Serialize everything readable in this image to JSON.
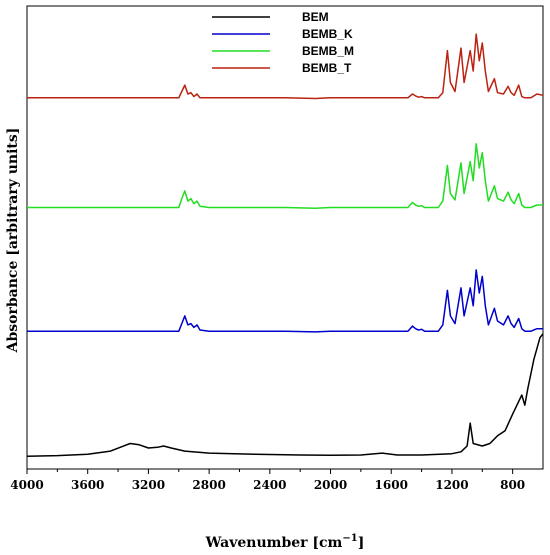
{
  "chart_data": {
    "type": "line",
    "xlabel": "Wavenumber [cm",
    "xlabel_sup": "−1",
    "xlabel_end": "]",
    "ylabel": "Absorbance [arbitrary units]",
    "xlim": [
      4000,
      600
    ],
    "x_reversed": true,
    "xticks": [
      4000,
      3600,
      3200,
      2800,
      2400,
      2000,
      1600,
      1200,
      800
    ],
    "xtick_labels": [
      "4000",
      "3600",
      "3200",
      "2800",
      "2400",
      "2000",
      "1600",
      "1200",
      "800"
    ],
    "yticks_shown": false,
    "grid": false,
    "legend_position": "top-center",
    "stacked_offset": true,
    "series": [
      {
        "name": "BEM",
        "color": "#000000",
        "baseline": 0.02,
        "points": [
          [
            4000,
            0.02
          ],
          [
            3800,
            0.025
          ],
          [
            3600,
            0.035
          ],
          [
            3450,
            0.06
          ],
          [
            3320,
            0.12
          ],
          [
            3260,
            0.11
          ],
          [
            3200,
            0.085
          ],
          [
            3140,
            0.09
          ],
          [
            3100,
            0.1
          ],
          [
            3050,
            0.085
          ],
          [
            2960,
            0.06
          ],
          [
            2800,
            0.045
          ],
          [
            2500,
            0.035
          ],
          [
            2200,
            0.03
          ],
          [
            2000,
            0.028
          ],
          [
            1800,
            0.03
          ],
          [
            1660,
            0.045
          ],
          [
            1560,
            0.03
          ],
          [
            1400,
            0.03
          ],
          [
            1200,
            0.04
          ],
          [
            1140,
            0.055
          ],
          [
            1100,
            0.1
          ],
          [
            1080,
            0.28
          ],
          [
            1060,
            0.12
          ],
          [
            1000,
            0.1
          ],
          [
            950,
            0.12
          ],
          [
            900,
            0.18
          ],
          [
            850,
            0.22
          ],
          [
            800,
            0.35
          ],
          [
            760,
            0.45
          ],
          [
            740,
            0.5
          ],
          [
            720,
            0.42
          ],
          [
            700,
            0.55
          ],
          [
            660,
            0.78
          ],
          [
            620,
            0.95
          ],
          [
            600,
            0.98
          ]
        ]
      },
      {
        "name": "BEMB_K",
        "color": "#0000cc",
        "baseline": 1.0,
        "points": [
          [
            4000,
            1.0
          ],
          [
            3000,
            1.0
          ],
          [
            2980,
            1.06
          ],
          [
            2960,
            1.12
          ],
          [
            2940,
            1.05
          ],
          [
            2920,
            1.06
          ],
          [
            2900,
            1.03
          ],
          [
            2880,
            1.05
          ],
          [
            2860,
            1.01
          ],
          [
            2800,
            1.0
          ],
          [
            2300,
            1.0
          ],
          [
            2100,
            0.995
          ],
          [
            2000,
            1.0
          ],
          [
            1490,
            1.0
          ],
          [
            1460,
            1.04
          ],
          [
            1440,
            1.02
          ],
          [
            1420,
            1.01
          ],
          [
            1400,
            1.015
          ],
          [
            1380,
            1.0
          ],
          [
            1290,
            1.0
          ],
          [
            1260,
            1.05
          ],
          [
            1230,
            1.32
          ],
          [
            1210,
            1.12
          ],
          [
            1180,
            1.06
          ],
          [
            1140,
            1.34
          ],
          [
            1120,
            1.12
          ],
          [
            1080,
            1.34
          ],
          [
            1060,
            1.2
          ],
          [
            1040,
            1.48
          ],
          [
            1020,
            1.3
          ],
          [
            1000,
            1.43
          ],
          [
            980,
            1.2
          ],
          [
            960,
            1.05
          ],
          [
            920,
            1.18
          ],
          [
            900,
            1.08
          ],
          [
            860,
            1.05
          ],
          [
            830,
            1.12
          ],
          [
            810,
            1.06
          ],
          [
            790,
            1.03
          ],
          [
            760,
            1.1
          ],
          [
            740,
            1.02
          ],
          [
            720,
            1.0
          ],
          [
            680,
            1.0
          ],
          [
            640,
            1.02
          ],
          [
            600,
            1.02
          ]
        ]
      },
      {
        "name": "BEMB_M",
        "color": "#22dd22",
        "baseline": 1.97,
        "points": [
          [
            4000,
            1.97
          ],
          [
            3000,
            1.97
          ],
          [
            2980,
            2.04
          ],
          [
            2960,
            2.1
          ],
          [
            2940,
            2.02
          ],
          [
            2920,
            2.04
          ],
          [
            2900,
            2.0
          ],
          [
            2880,
            2.02
          ],
          [
            2860,
            1.98
          ],
          [
            2800,
            1.97
          ],
          [
            2300,
            1.97
          ],
          [
            2100,
            1.965
          ],
          [
            2000,
            1.97
          ],
          [
            1490,
            1.97
          ],
          [
            1460,
            2.01
          ],
          [
            1440,
            1.99
          ],
          [
            1420,
            1.98
          ],
          [
            1400,
            1.985
          ],
          [
            1380,
            1.97
          ],
          [
            1290,
            1.97
          ],
          [
            1260,
            2.02
          ],
          [
            1230,
            2.3
          ],
          [
            1210,
            2.08
          ],
          [
            1180,
            2.03
          ],
          [
            1140,
            2.32
          ],
          [
            1120,
            2.08
          ],
          [
            1080,
            2.33
          ],
          [
            1060,
            2.18
          ],
          [
            1040,
            2.47
          ],
          [
            1020,
            2.28
          ],
          [
            1000,
            2.4
          ],
          [
            980,
            2.18
          ],
          [
            960,
            2.02
          ],
          [
            920,
            2.14
          ],
          [
            900,
            2.04
          ],
          [
            860,
            2.02
          ],
          [
            830,
            2.09
          ],
          [
            810,
            2.03
          ],
          [
            790,
            2.0
          ],
          [
            760,
            2.08
          ],
          [
            740,
            1.99
          ],
          [
            720,
            1.97
          ],
          [
            680,
            1.97
          ],
          [
            640,
            1.99
          ],
          [
            600,
            1.99
          ]
        ]
      },
      {
        "name": "BEMB_T",
        "color": "#bb2211",
        "baseline": 2.83,
        "points": [
          [
            4000,
            2.83
          ],
          [
            3000,
            2.83
          ],
          [
            2980,
            2.88
          ],
          [
            2960,
            2.93
          ],
          [
            2940,
            2.86
          ],
          [
            2920,
            2.87
          ],
          [
            2900,
            2.84
          ],
          [
            2880,
            2.86
          ],
          [
            2860,
            2.83
          ],
          [
            2800,
            2.83
          ],
          [
            2300,
            2.83
          ],
          [
            2100,
            2.825
          ],
          [
            2000,
            2.83
          ],
          [
            1490,
            2.83
          ],
          [
            1460,
            2.86
          ],
          [
            1440,
            2.845
          ],
          [
            1420,
            2.835
          ],
          [
            1400,
            2.84
          ],
          [
            1380,
            2.83
          ],
          [
            1290,
            2.83
          ],
          [
            1260,
            2.87
          ],
          [
            1230,
            3.2
          ],
          [
            1210,
            2.95
          ],
          [
            1180,
            2.88
          ],
          [
            1140,
            3.22
          ],
          [
            1120,
            2.95
          ],
          [
            1080,
            3.2
          ],
          [
            1060,
            3.04
          ],
          [
            1040,
            3.33
          ],
          [
            1020,
            3.12
          ],
          [
            1000,
            3.26
          ],
          [
            980,
            3.04
          ],
          [
            960,
            2.88
          ],
          [
            920,
            2.98
          ],
          [
            900,
            2.87
          ],
          [
            860,
            2.86
          ],
          [
            830,
            2.92
          ],
          [
            810,
            2.87
          ],
          [
            790,
            2.85
          ],
          [
            760,
            2.93
          ],
          [
            740,
            2.84
          ],
          [
            720,
            2.83
          ],
          [
            680,
            2.83
          ],
          [
            640,
            2.86
          ],
          [
            600,
            2.85
          ]
        ]
      }
    ]
  }
}
